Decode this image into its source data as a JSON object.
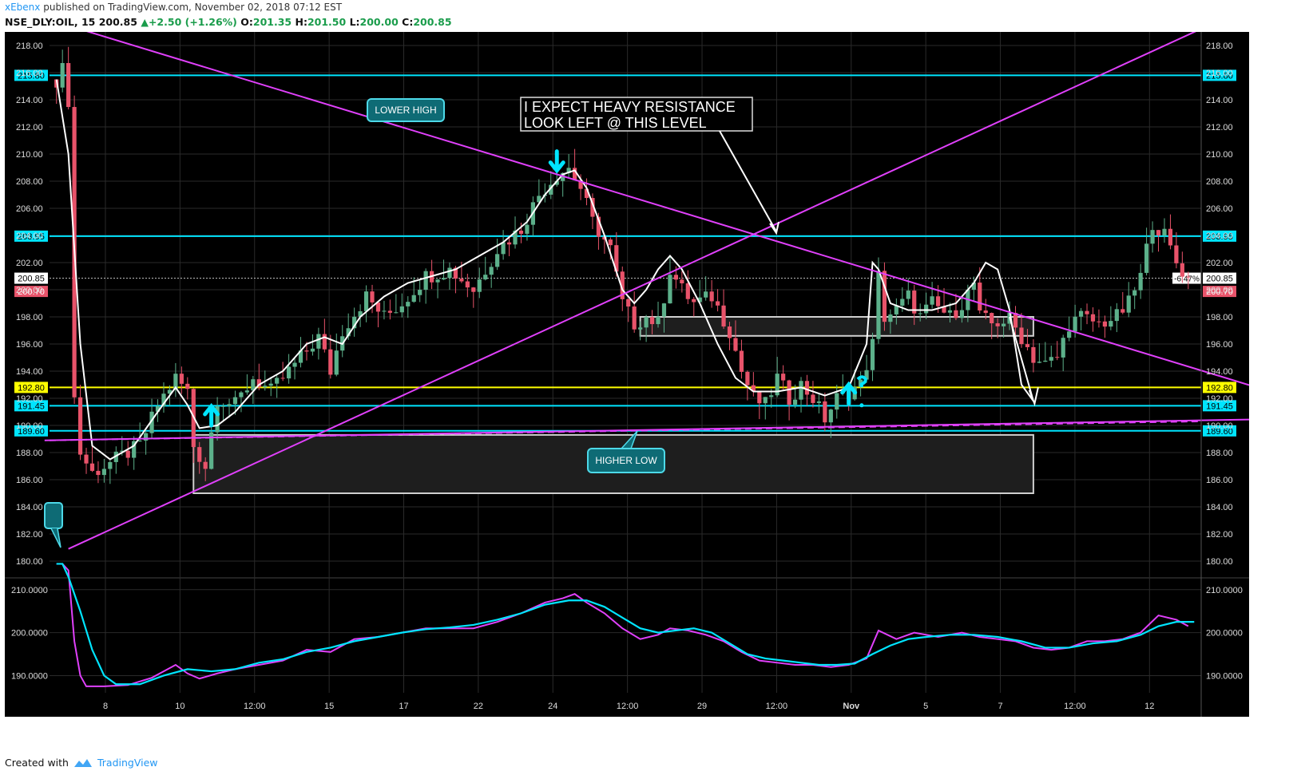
{
  "header": {
    "author": "xEbenx",
    "published_text": "published on TradingView.com, November 02, 2018 07:12 EST"
  },
  "symbol_bar": {
    "symbol": "NSE_DLY:OIL, 15",
    "last": "200.85",
    "change": "+2.50 (+1.26%)",
    "open_label": "O:",
    "open": "201.35",
    "high_label": "H:",
    "high": "201.50",
    "low_label": "L:",
    "low": "200.00",
    "close_label": "C:",
    "close": "200.85"
  },
  "footer": {
    "created_with": "Created with",
    "brand": "TradingView"
  },
  "colors": {
    "background": "#000000",
    "bull": "#5cb08a",
    "bear": "#e8536a",
    "cyan": "#00e5ff",
    "magenta": "#e040fb",
    "yellow": "#ffff00",
    "grid": "#2a2a2a"
  },
  "chart_data": [
    {
      "type": "candlestick",
      "main_pane": true,
      "ylim": [
        179,
        219
      ],
      "y_ticks": [
        "218.00",
        "216.00",
        "214.00",
        "212.00",
        "210.00",
        "208.00",
        "206.00",
        "204.00",
        "202.00",
        "200.00",
        "198.00",
        "196.00",
        "194.00",
        "192.00",
        "190.00",
        "188.00",
        "186.00",
        "184.00",
        "182.00",
        "180.00"
      ],
      "x_ticks": [
        "8",
        "10",
        "12:00",
        "15",
        "17",
        "22",
        "24",
        "12:00",
        "29",
        "12:00",
        "Nov",
        "5",
        "7",
        "12:00",
        "12"
      ],
      "last_price": "200.85",
      "last_price_change": "-6.47%",
      "secondary_price": "200.70",
      "horizontal_levels": [
        {
          "label": "215.80",
          "value": 215.8,
          "color": "#00e5ff"
        },
        {
          "label": "203.95",
          "value": 203.95,
          "color": "#00e5ff"
        },
        {
          "label": "192.80",
          "value": 192.8,
          "color": "#ffff00"
        },
        {
          "label": "191.45",
          "value": 191.45,
          "color": "#00e5ff"
        },
        {
          "label": "189.60",
          "value": 189.6,
          "color": "#00e5ff"
        }
      ],
      "annotations": [
        {
          "text": "LOWER HIGH"
        },
        {
          "text": "HIGHER LOW"
        },
        {
          "text": "I EXPECT HEAVY RESISTANCE"
        },
        {
          "text": "LOOK LEFT @ THIS LEVEL"
        }
      ],
      "price_path": [
        [
          0,
          215.5
        ],
        [
          1,
          216.2
        ],
        [
          2,
          214.0
        ],
        [
          3,
          192.0
        ],
        [
          4,
          188.0
        ],
        [
          6,
          186.5
        ],
        [
          10,
          187.5
        ],
        [
          14,
          188.5
        ],
        [
          17,
          191.5
        ],
        [
          20,
          193.5
        ],
        [
          22,
          192.5
        ],
        [
          23,
          188.5
        ],
        [
          25,
          187.0
        ],
        [
          27,
          192.0
        ],
        [
          30,
          191.5
        ],
        [
          33,
          193.5
        ],
        [
          36,
          192.5
        ],
        [
          40,
          194.5
        ],
        [
          44,
          196.5
        ],
        [
          46,
          194.0
        ],
        [
          48,
          197.0
        ],
        [
          52,
          199.5
        ],
        [
          55,
          198.0
        ],
        [
          58,
          199.0
        ],
        [
          62,
          201.0
        ],
        [
          66,
          201.5
        ],
        [
          70,
          200.0
        ],
        [
          74,
          203.0
        ],
        [
          78,
          204.5
        ],
        [
          81,
          207.0
        ],
        [
          84,
          208.5
        ],
        [
          86,
          209.0
        ],
        [
          88,
          207.5
        ],
        [
          90,
          205.0
        ],
        [
          93,
          203.0
        ],
        [
          95,
          199.0
        ],
        [
          97,
          197.5
        ],
        [
          99,
          198.0
        ],
        [
          101,
          197.5
        ],
        [
          103,
          201.5
        ],
        [
          105,
          200.0
        ],
        [
          107,
          199.0
        ],
        [
          110,
          199.5
        ],
        [
          113,
          197.0
        ],
        [
          115,
          194.0
        ],
        [
          117,
          192.0
        ],
        [
          119,
          191.5
        ],
        [
          121,
          193.5
        ],
        [
          123,
          192.0
        ],
        [
          125,
          193.0
        ],
        [
          127,
          192.0
        ],
        [
          129,
          190.5
        ],
        [
          131,
          192.0
        ],
        [
          133,
          192.5
        ],
        [
          135,
          193.0
        ],
        [
          137,
          196.0
        ],
        [
          138,
          201.0
        ],
        [
          139,
          198.0
        ],
        [
          141,
          198.5
        ],
        [
          143,
          199.5
        ],
        [
          145,
          198.0
        ],
        [
          147,
          199.0
        ],
        [
          150,
          198.0
        ],
        [
          152,
          199.0
        ],
        [
          154,
          200.5
        ],
        [
          155,
          198.0
        ],
        [
          157,
          197.5
        ],
        [
          160,
          197.8
        ],
        [
          162,
          196.5
        ],
        [
          164,
          195.0
        ],
        [
          166,
          194.5
        ],
        [
          168,
          195.0
        ],
        [
          170,
          197.5
        ],
        [
          172,
          198.0
        ],
        [
          175,
          197.5
        ],
        [
          178,
          198.0
        ],
        [
          180,
          199.0
        ],
        [
          182,
          201.0
        ],
        [
          184,
          205.0
        ],
        [
          186,
          204.0
        ],
        [
          188,
          202.0
        ],
        [
          190,
          200.8
        ]
      ],
      "smoothed_line_path": [
        [
          0,
          215.5
        ],
        [
          2,
          210.0
        ],
        [
          4,
          196.0
        ],
        [
          6,
          188.5
        ],
        [
          9,
          187.5
        ],
        [
          13,
          188.5
        ],
        [
          17,
          191.0
        ],
        [
          20,
          192.8
        ],
        [
          22,
          191.5
        ],
        [
          24,
          189.8
        ],
        [
          27,
          190.0
        ],
        [
          30,
          191.0
        ],
        [
          34,
          193.0
        ],
        [
          38,
          194.0
        ],
        [
          42,
          196.0
        ],
        [
          45,
          196.5
        ],
        [
          48,
          196.0
        ],
        [
          51,
          198.0
        ],
        [
          55,
          199.5
        ],
        [
          59,
          200.5
        ],
        [
          63,
          201.0
        ],
        [
          67,
          201.5
        ],
        [
          71,
          202.5
        ],
        [
          75,
          203.5
        ],
        [
          79,
          205.0
        ],
        [
          82,
          207.0
        ],
        [
          85,
          208.5
        ],
        [
          87,
          208.8
        ],
        [
          89,
          207.5
        ],
        [
          92,
          204.0
        ],
        [
          95,
          200.0
        ],
        [
          97,
          199.0
        ],
        [
          99,
          200.0
        ],
        [
          101,
          201.5
        ],
        [
          103,
          202.5
        ],
        [
          105,
          201.5
        ],
        [
          108,
          199.0
        ],
        [
          111,
          196.0
        ],
        [
          114,
          193.5
        ],
        [
          117,
          192.5
        ],
        [
          121,
          192.5
        ],
        [
          125,
          192.8
        ],
        [
          129,
          192.2
        ],
        [
          133,
          192.8
        ],
        [
          136,
          196.0
        ],
        [
          137,
          202.0
        ],
        [
          138,
          201.5
        ],
        [
          140,
          199.0
        ],
        [
          143,
          198.5
        ],
        [
          147,
          198.5
        ],
        [
          151,
          199.0
        ],
        [
          154,
          200.5
        ],
        [
          156,
          202.0
        ],
        [
          158,
          201.5
        ],
        [
          160,
          198.5
        ],
        [
          162,
          193.0
        ],
        [
          164,
          191.8
        ]
      ],
      "trendlines": [
        {
          "from": [
            -2,
            220.0
          ],
          "to": [
            215,
            191.0
          ],
          "color": "#e040fb"
        },
        {
          "from": [
            2,
            180.9
          ],
          "to": [
            196,
            220.0
          ],
          "color": "#e040fb"
        },
        {
          "from": [
            -2,
            188.9
          ],
          "to": [
            235,
            190.7
          ],
          "color": "#e040fb"
        }
      ],
      "boxes": [
        {
          "x": [
            23,
            164
          ],
          "y": [
            185.0,
            189.3
          ]
        },
        {
          "x": [
            98,
            164
          ],
          "y": [
            196.6,
            198.0
          ]
        }
      ]
    },
    {
      "type": "line",
      "main_pane": false,
      "ylim": [
        186,
        212
      ],
      "y_ticks": [
        "210.0000",
        "200.0000",
        "190.0000"
      ],
      "series": [
        {
          "color": "#e040fb",
          "values": [
            [
              0,
              216.0
            ],
            [
              1,
              216.0
            ],
            [
              2,
              214.5
            ],
            [
              3,
              198.0
            ],
            [
              4,
              190.0
            ],
            [
              5,
              187.5
            ],
            [
              8,
              187.5
            ],
            [
              12,
              187.8
            ],
            [
              16,
              189.5
            ],
            [
              20,
              192.5
            ],
            [
              22,
              190.5
            ],
            [
              24,
              189.3
            ],
            [
              27,
              190.5
            ],
            [
              30,
              191.5
            ],
            [
              34,
              192.5
            ],
            [
              38,
              193.5
            ],
            [
              42,
              196.0
            ],
            [
              46,
              195.5
            ],
            [
              50,
              198.5
            ],
            [
              54,
              199.0
            ],
            [
              58,
              200.0
            ],
            [
              62,
              201.0
            ],
            [
              66,
              201.0
            ],
            [
              70,
              201.0
            ],
            [
              74,
              202.5
            ],
            [
              78,
              204.5
            ],
            [
              82,
              207.0
            ],
            [
              85,
              208.0
            ],
            [
              87,
              209.0
            ],
            [
              89,
              207.0
            ],
            [
              92,
              204.5
            ],
            [
              95,
              201.0
            ],
            [
              98,
              198.5
            ],
            [
              101,
              199.5
            ],
            [
              103,
              201.0
            ],
            [
              106,
              200.5
            ],
            [
              109,
              199.5
            ],
            [
              112,
              198.0
            ],
            [
              115,
              195.5
            ],
            [
              118,
              193.5
            ],
            [
              121,
              193.0
            ],
            [
              124,
              192.5
            ],
            [
              127,
              192.5
            ],
            [
              130,
              192.0
            ],
            [
              133,
              192.5
            ],
            [
              136,
              194.0
            ],
            [
              138,
              200.5
            ],
            [
              141,
              198.5
            ],
            [
              144,
              200.0
            ],
            [
              148,
              199.0
            ],
            [
              152,
              200.0
            ],
            [
              155,
              199.0
            ],
            [
              158,
              198.5
            ],
            [
              161,
              198.0
            ],
            [
              164,
              196.5
            ],
            [
              167,
              196.0
            ],
            [
              170,
              196.5
            ],
            [
              173,
              198.0
            ],
            [
              176,
              198.0
            ],
            [
              179,
              198.5
            ],
            [
              182,
              200.0
            ],
            [
              185,
              204.0
            ],
            [
              188,
              203.0
            ],
            [
              190,
              201.5
            ]
          ]
        },
        {
          "color": "#00e5ff",
          "values": [
            [
              0,
              216.0
            ],
            [
              1,
              216.0
            ],
            [
              2,
              213.0
            ],
            [
              4,
              205.0
            ],
            [
              6,
              196.0
            ],
            [
              8,
              190.0
            ],
            [
              10,
              188.0
            ],
            [
              14,
              188.0
            ],
            [
              18,
              190.0
            ],
            [
              22,
              191.5
            ],
            [
              26,
              191.0
            ],
            [
              30,
              191.5
            ],
            [
              34,
              193.0
            ],
            [
              38,
              193.8
            ],
            [
              42,
              195.5
            ],
            [
              46,
              196.5
            ],
            [
              50,
              198.0
            ],
            [
              54,
              199.0
            ],
            [
              58,
              200.0
            ],
            [
              62,
              200.8
            ],
            [
              66,
              201.2
            ],
            [
              70,
              201.8
            ],
            [
              74,
              203.0
            ],
            [
              78,
              204.5
            ],
            [
              82,
              206.5
            ],
            [
              86,
              207.5
            ],
            [
              89,
              207.5
            ],
            [
              92,
              206.0
            ],
            [
              95,
              203.5
            ],
            [
              98,
              201.0
            ],
            [
              101,
              200.0
            ],
            [
              104,
              200.5
            ],
            [
              107,
              201.0
            ],
            [
              110,
              200.0
            ],
            [
              113,
              197.5
            ],
            [
              116,
              195.0
            ],
            [
              119,
              194.0
            ],
            [
              122,
              193.5
            ],
            [
              125,
              193.0
            ],
            [
              128,
              192.5
            ],
            [
              131,
              192.5
            ],
            [
              134,
              192.8
            ],
            [
              137,
              195.0
            ],
            [
              140,
              197.0
            ],
            [
              143,
              198.5
            ],
            [
              146,
              199.0
            ],
            [
              150,
              199.5
            ],
            [
              154,
              199.5
            ],
            [
              158,
              199.0
            ],
            [
              162,
              198.0
            ],
            [
              166,
              196.5
            ],
            [
              170,
              196.5
            ],
            [
              174,
              197.5
            ],
            [
              178,
              198.0
            ],
            [
              182,
              199.5
            ],
            [
              185,
              201.5
            ],
            [
              188,
              202.5
            ],
            [
              191,
              202.5
            ]
          ]
        }
      ]
    }
  ]
}
